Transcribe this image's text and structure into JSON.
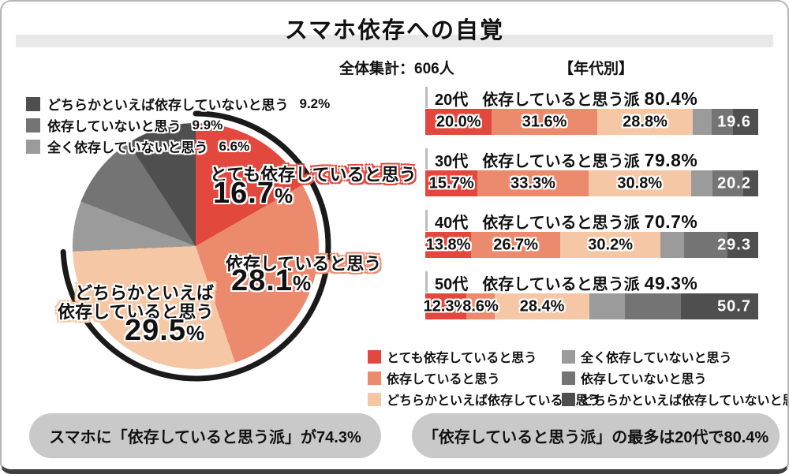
{
  "title": "スマホ依存への自覚",
  "subtitle_total": "全体集計：606人",
  "subtitle_age": "【年代別】",
  "percent_sign": "%",
  "colors": {
    "very_dependent": "#e2483d",
    "dependent": "#ec8a6e",
    "somewhat_dependent": "#f6c7a4",
    "not_at_all": "#9b9b9b",
    "not_dependent": "#747474",
    "somewhat_not": "#4f4f4f",
    "arc": "#1a1a1a",
    "pill_bg": "#c9c9c9",
    "title_band": "#e8e8e8"
  },
  "pie": {
    "segments": [
      {
        "label": "とても依存していると思う",
        "value": 16.7,
        "color": "#e2483d"
      },
      {
        "label": "依存していると思う",
        "value": 28.1,
        "color": "#ec8a6e"
      },
      {
        "label": "どちらかといえば依存していると思う",
        "value": 29.5,
        "color": "#f6c7a4"
      },
      {
        "label": "全く依存していないと思う",
        "value": 6.6,
        "color": "#9b9b9b"
      },
      {
        "label": "依存していないと思う",
        "value": 9.9,
        "color": "#747474"
      },
      {
        "label": "どちらかといえば依存していないと思う",
        "value": 9.2,
        "color": "#4f4f4f"
      }
    ],
    "arc_percent": 74.3,
    "labels": [
      {
        "text": "とても依存していると思う",
        "num": "16.7",
        "glow": "#e2483d"
      },
      {
        "text": "依存していると思う",
        "num": "28.1",
        "glow": "#ec8a6e"
      },
      {
        "text_line1": "どちらかといえば",
        "text_line2": "依存していると思う",
        "num": "29.5",
        "glow": "#f6c7a4"
      }
    ],
    "mini_legend": [
      {
        "label": "どちらかといえば依存していないと思う",
        "value": "9.2%",
        "color": "#4f4f4f"
      },
      {
        "label": "依存していないと思う",
        "value": "9.9%",
        "color": "#747474"
      },
      {
        "label": "全く依存していないと思う",
        "value": "6.6%",
        "color": "#9b9b9b"
      }
    ]
  },
  "bars": {
    "rows": [
      {
        "age": "20代",
        "headline": "依存していると思う派",
        "headline_value": "80.4%",
        "values": [
          20.0,
          31.6,
          28.8
        ],
        "labels": [
          "20.0%",
          "31.6%",
          "28.8%"
        ],
        "gray_total_label": "19.6",
        "grays_est": [
          5.6,
          6.4,
          7.6
        ]
      },
      {
        "age": "30代",
        "headline": "依存していると思う派",
        "headline_value": "79.8%",
        "values": [
          15.7,
          33.3,
          30.8
        ],
        "labels": [
          "15.7%",
          "33.3%",
          "30.8%"
        ],
        "gray_total_label": "20.2",
        "grays_est": [
          6.4,
          9.3,
          4.5
        ]
      },
      {
        "age": "40代",
        "headline": "依存していると思う派",
        "headline_value": "70.7%",
        "values": [
          13.8,
          26.7,
          30.2
        ],
        "labels": [
          "13.8%",
          "26.7%",
          "30.2%"
        ],
        "gray_total_label": "29.3",
        "grays_est": [
          7.0,
          13.0,
          9.3
        ]
      },
      {
        "age": "50代",
        "headline": "依存していると思う派",
        "headline_value": "49.3%",
        "values": [
          12.3,
          8.6,
          28.4
        ],
        "labels": [
          "12.3%",
          "8.6%",
          "28.4%"
        ],
        "gray_total_label": "50.7",
        "grays_est": [
          10.6,
          17.0,
          23.1
        ]
      }
    ],
    "colored_keys": [
      "very_dependent",
      "dependent",
      "somewhat_dependent"
    ],
    "gray_keys": [
      "not_at_all",
      "not_dependent",
      "somewhat_not"
    ]
  },
  "legend": {
    "left": [
      {
        "label": "とても依存していると思う",
        "color": "#e2483d"
      },
      {
        "label": "依存していると思う",
        "color": "#ec8a6e"
      },
      {
        "label": "どちらかといえば依存していると思う",
        "color": "#f6c7a4"
      }
    ],
    "right": [
      {
        "label": "全く依存していないと思う",
        "color": "#9b9b9b"
      },
      {
        "label": "依存していないと思う",
        "color": "#747474"
      },
      {
        "label": "どちらかといえば依存していないと思う",
        "color": "#4f4f4f"
      }
    ]
  },
  "callouts": [
    "スマホに「依存していると思う派」が74.3%",
    "「依存していると思う派」の最多は20代で80.4%"
  ],
  "chart_data": [
    {
      "type": "pie",
      "title": "スマホ依存への自覚（全体集計：606人）",
      "unit": "%",
      "segments": [
        {
          "label": "とても依存していると思う",
          "value": 16.7
        },
        {
          "label": "依存していると思う",
          "value": 28.1
        },
        {
          "label": "どちらかといえば依存していると思う",
          "value": 29.5
        },
        {
          "label": "全く依存していないと思う",
          "value": 6.6
        },
        {
          "label": "依存していないと思う",
          "value": 9.9
        },
        {
          "label": "どちらかといえば依存していないと思う",
          "value": 9.2
        }
      ],
      "annotation": "依存していると思う派（計）74.3%（黒い円弧で強調）",
      "legend_position": "around"
    },
    {
      "type": "bar",
      "subtype": "stacked-horizontal",
      "title": "【年代別】",
      "unit": "%",
      "categories": [
        "20代",
        "30代",
        "40代",
        "50代"
      ],
      "series": [
        {
          "name": "とても依存していると思う",
          "values": [
            20.0,
            15.7,
            13.8,
            12.3
          ]
        },
        {
          "name": "依存していると思う",
          "values": [
            31.6,
            33.3,
            26.7,
            8.6
          ]
        },
        {
          "name": "どちらかといえば依存していると思う",
          "values": [
            28.8,
            30.8,
            30.2,
            28.4
          ]
        },
        {
          "name": "依存していないと思う（計・グレー3色の合計）",
          "values": [
            19.6,
            20.2,
            29.3,
            50.7
          ]
        }
      ],
      "headlines": [
        "20代 依存していると思う派 80.4%",
        "30代 依存していると思う派 79.8%",
        "40代 依存していると思う派 70.7%",
        "50代 依存していると思う派 49.3%"
      ],
      "xlim": [
        0,
        100
      ],
      "grid": false,
      "legend_position": "bottom-right"
    }
  ]
}
